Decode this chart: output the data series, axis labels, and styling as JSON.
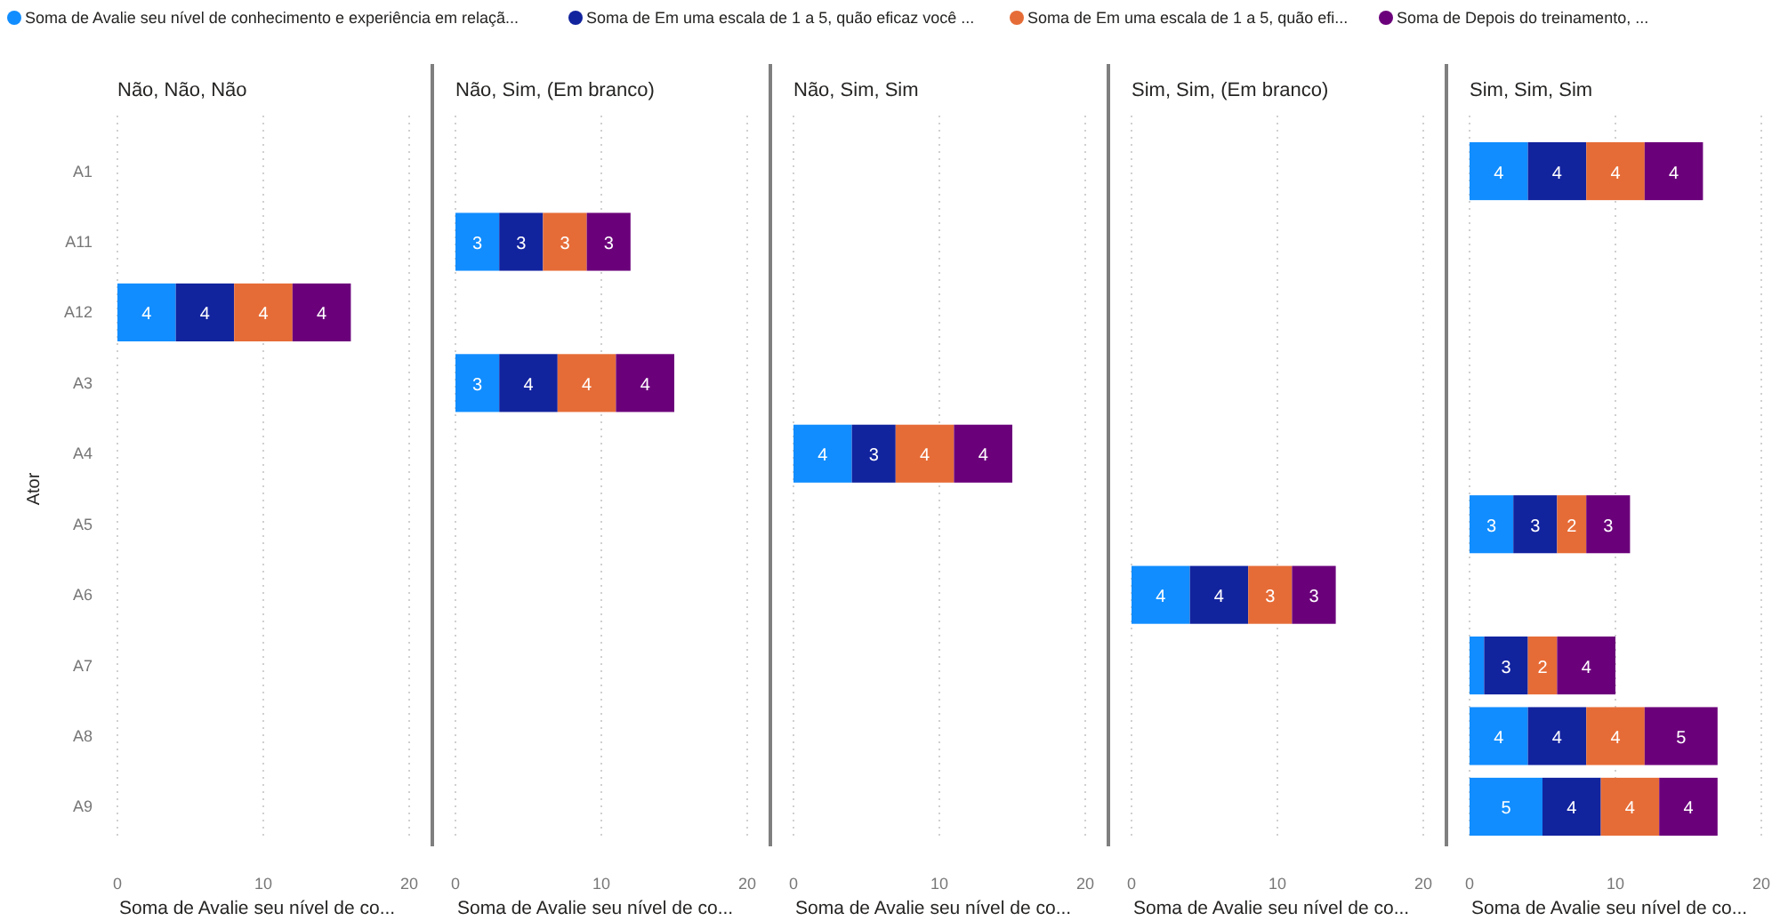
{
  "chart_data": [
    {
      "type": "bar",
      "orientation": "horizontal",
      "stacked": true,
      "title": "Não, Não, Não",
      "xlabel": "Soma de Avalie seu nível de co...",
      "ylabel": "Ator",
      "categories": [
        "A1",
        "A11",
        "A12",
        "A3",
        "A4",
        "A5",
        "A6",
        "A7",
        "A8",
        "A9"
      ],
      "xlim": [
        0,
        20
      ],
      "xticks": [
        0,
        10,
        20
      ],
      "grid": "x",
      "legend": "top",
      "series": [
        {
          "name": "Soma de Avalie seu nível de conhecimento e experiência em relaçã...",
          "color": "#118dff",
          "values": [
            null,
            null,
            4,
            null,
            null,
            null,
            null,
            null,
            null,
            null
          ],
          "value_labels": [
            null,
            null,
            "4",
            null,
            null,
            null,
            null,
            null,
            null,
            null
          ]
        },
        {
          "name": "Soma de Em uma escala de 1 a 5, quão eficaz você ...",
          "color": "#12239e",
          "values": [
            null,
            null,
            4,
            null,
            null,
            null,
            null,
            null,
            null,
            null
          ],
          "value_labels": [
            null,
            null,
            "4",
            null,
            null,
            null,
            null,
            null,
            null,
            null
          ]
        },
        {
          "name": "Soma de Em uma escala de 1 a 5, quão efi...",
          "color": "#e66c37",
          "values": [
            null,
            null,
            4,
            null,
            null,
            null,
            null,
            null,
            null,
            null
          ],
          "value_labels": [
            null,
            null,
            "4",
            null,
            null,
            null,
            null,
            null,
            null,
            null
          ]
        },
        {
          "name": "Soma de Depois do treinamento, ...",
          "color": "#6b007b",
          "values": [
            null,
            null,
            4,
            null,
            null,
            null,
            null,
            null,
            null,
            null
          ],
          "value_labels": [
            null,
            null,
            "4",
            null,
            null,
            null,
            null,
            null,
            null,
            null
          ]
        }
      ]
    },
    {
      "type": "bar",
      "orientation": "horizontal",
      "stacked": true,
      "title": "Não, Sim, (Em branco)",
      "xlabel": "Soma de Avalie seu nível de co...",
      "categories": [
        "A1",
        "A11",
        "A12",
        "A3",
        "A4",
        "A5",
        "A6",
        "A7",
        "A8",
        "A9"
      ],
      "xlim": [
        0,
        20
      ],
      "xticks": [
        0,
        10,
        20
      ],
      "grid": "x",
      "tick_labels": "x",
      "series": [
        {
          "color": "#118dff",
          "values": [
            null,
            3,
            null,
            3,
            null,
            null,
            null,
            null,
            null,
            null
          ],
          "value_labels": [
            null,
            "3",
            null,
            "3",
            null,
            null,
            null,
            null,
            null,
            null
          ]
        },
        {
          "color": "#12239e",
          "values": [
            null,
            3,
            null,
            4,
            null,
            null,
            null,
            null,
            null,
            null
          ],
          "value_labels": [
            null,
            "3",
            null,
            "4",
            null,
            null,
            null,
            null,
            null,
            null
          ]
        },
        {
          "color": "#e66c37",
          "values": [
            null,
            3,
            null,
            4,
            null,
            null,
            null,
            null,
            null,
            null
          ],
          "value_labels": [
            null,
            "3",
            null,
            "4",
            null,
            null,
            null,
            null,
            null,
            null
          ]
        },
        {
          "color": "#6b007b",
          "values": [
            null,
            3,
            null,
            4,
            null,
            null,
            null,
            null,
            null,
            null
          ],
          "value_labels": [
            null,
            "3",
            null,
            "4",
            null,
            null,
            null,
            null,
            null,
            null
          ]
        }
      ]
    },
    {
      "type": "bar",
      "orientation": "horizontal",
      "stacked": true,
      "title": "Não, Sim, Sim",
      "xlabel": "Soma de Avalie seu nível de co...",
      "categories": [
        "A1",
        "A11",
        "A12",
        "A3",
        "A4",
        "A5",
        "A6",
        "A7",
        "A8",
        "A9"
      ],
      "xlim": [
        0,
        20
      ],
      "xticks": [
        0,
        10,
        20
      ],
      "grid": "x",
      "tick_labels": "x",
      "series": [
        {
          "color": "#118dff",
          "values": [
            null,
            null,
            null,
            null,
            4,
            null,
            null,
            null,
            null,
            null
          ],
          "value_labels": [
            null,
            null,
            null,
            null,
            "4",
            null,
            null,
            null,
            null,
            null
          ]
        },
        {
          "color": "#12239e",
          "values": [
            null,
            null,
            null,
            null,
            3,
            null,
            null,
            null,
            null,
            null
          ],
          "value_labels": [
            null,
            null,
            null,
            null,
            "3",
            null,
            null,
            null,
            null,
            null
          ]
        },
        {
          "color": "#e66c37",
          "values": [
            null,
            null,
            null,
            null,
            4,
            null,
            null,
            null,
            null,
            null
          ],
          "value_labels": [
            null,
            null,
            null,
            null,
            "4",
            null,
            null,
            null,
            null,
            null
          ]
        },
        {
          "color": "#6b007b",
          "values": [
            null,
            null,
            null,
            null,
            4,
            null,
            null,
            null,
            null,
            null
          ],
          "value_labels": [
            null,
            null,
            null,
            null,
            "4",
            null,
            null,
            null,
            null,
            null
          ]
        }
      ]
    },
    {
      "type": "bar",
      "orientation": "horizontal",
      "stacked": true,
      "title": "Sim, Sim, (Em branco)",
      "xlabel": "Soma de Avalie seu nível de co...",
      "categories": [
        "A1",
        "A11",
        "A12",
        "A3",
        "A4",
        "A5",
        "A6",
        "A7",
        "A8",
        "A9"
      ],
      "xlim": [
        0,
        20
      ],
      "xticks": [
        0,
        10,
        20
      ],
      "grid": "x",
      "tick_labels": "x",
      "series": [
        {
          "color": "#118dff",
          "values": [
            null,
            null,
            null,
            null,
            null,
            null,
            4,
            null,
            null,
            null
          ],
          "value_labels": [
            null,
            null,
            null,
            null,
            null,
            null,
            "4",
            null,
            null,
            null
          ]
        },
        {
          "color": "#12239e",
          "values": [
            null,
            null,
            null,
            null,
            null,
            null,
            4,
            null,
            null,
            null
          ],
          "value_labels": [
            null,
            null,
            null,
            null,
            null,
            null,
            "4",
            null,
            null,
            null
          ]
        },
        {
          "color": "#e66c37",
          "values": [
            null,
            null,
            null,
            null,
            null,
            null,
            3,
            null,
            null,
            null
          ],
          "value_labels": [
            null,
            null,
            null,
            null,
            null,
            null,
            "3",
            null,
            null,
            null
          ]
        },
        {
          "color": "#6b007b",
          "values": [
            null,
            null,
            null,
            null,
            null,
            null,
            3,
            null,
            null,
            null
          ],
          "value_labels": [
            null,
            null,
            null,
            null,
            null,
            null,
            "3",
            null,
            null,
            null
          ]
        }
      ]
    },
    {
      "type": "bar",
      "orientation": "horizontal",
      "stacked": true,
      "title": "Sim, Sim, Sim",
      "xlabel": "Soma de Avalie seu nível de co...",
      "categories": [
        "A1",
        "A11",
        "A12",
        "A3",
        "A4",
        "A5",
        "A6",
        "A7",
        "A8",
        "A9"
      ],
      "xlim": [
        0,
        20
      ],
      "xticks": [
        0,
        10,
        20
      ],
      "grid": "x",
      "tick_labels": "x",
      "series": [
        {
          "color": "#118dff",
          "values": [
            4,
            null,
            null,
            null,
            null,
            3,
            null,
            1,
            4,
            5
          ],
          "value_labels": [
            "4",
            null,
            null,
            null,
            null,
            "3",
            null,
            null,
            "4",
            "5"
          ]
        },
        {
          "color": "#12239e",
          "values": [
            4,
            null,
            null,
            null,
            null,
            3,
            null,
            3,
            4,
            4
          ],
          "value_labels": [
            "4",
            null,
            null,
            null,
            null,
            "3",
            null,
            "3",
            "4",
            "4"
          ]
        },
        {
          "color": "#e66c37",
          "values": [
            4,
            null,
            null,
            null,
            null,
            2,
            null,
            2,
            4,
            4
          ],
          "value_labels": [
            "4",
            null,
            null,
            null,
            null,
            "2",
            null,
            "2",
            "4",
            "4"
          ]
        },
        {
          "color": "#6b007b",
          "values": [
            4,
            null,
            null,
            null,
            null,
            3,
            null,
            4,
            5,
            4
          ],
          "value_labels": [
            "4",
            null,
            null,
            null,
            null,
            "3",
            null,
            "4",
            "5",
            "4"
          ]
        }
      ]
    }
  ]
}
